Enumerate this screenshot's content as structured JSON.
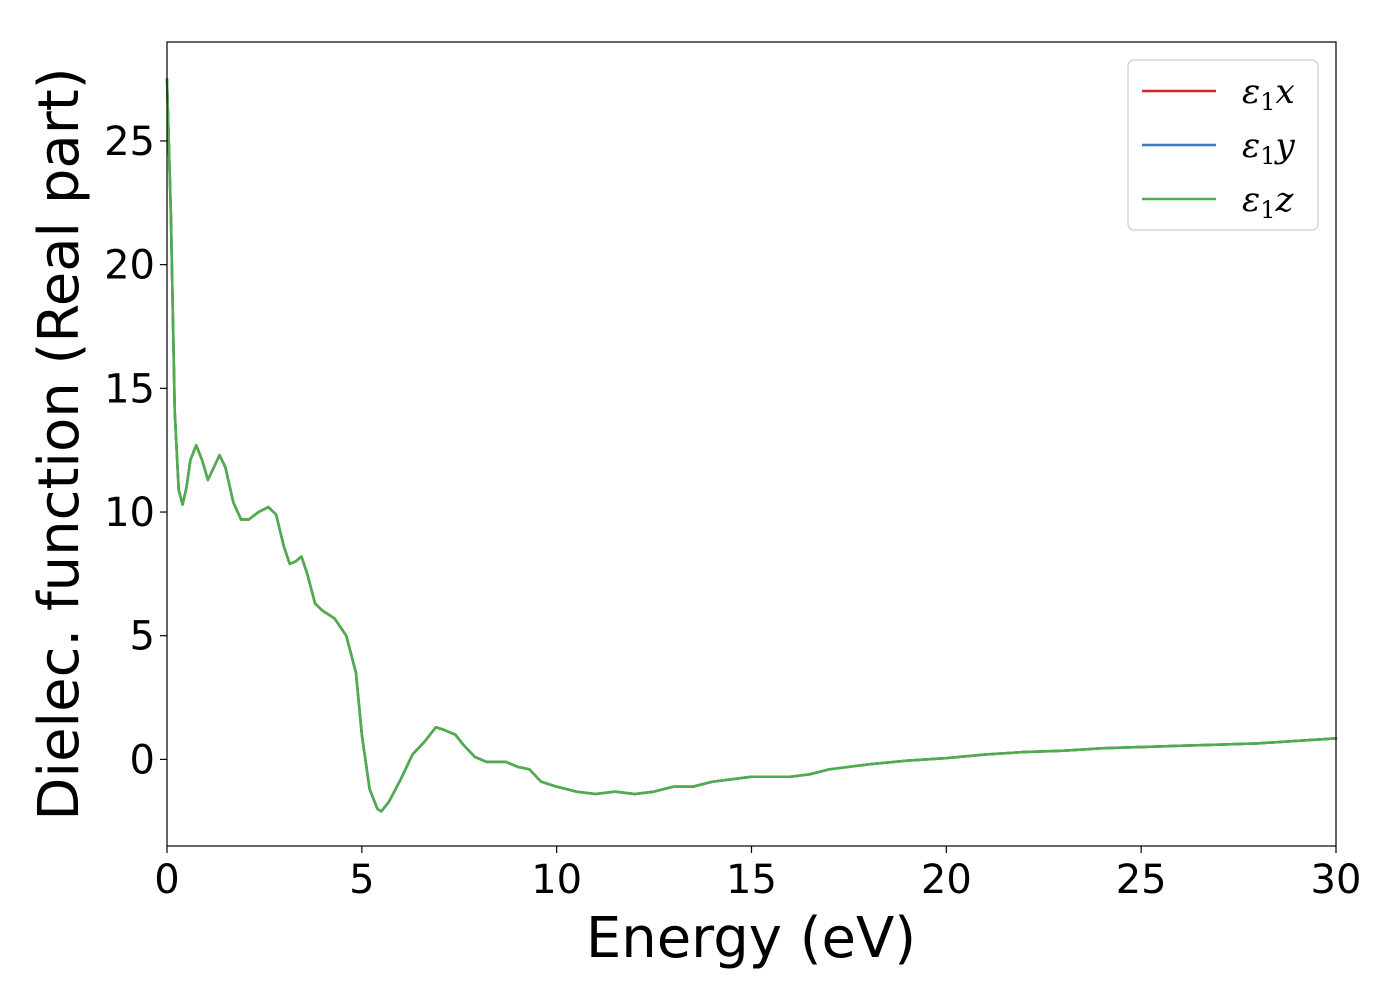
{
  "chart_data": {
    "type": "line",
    "xlabel": "Energy (eV)",
    "ylabel": "Dielec. function (Real part)",
    "xlim": [
      0,
      30
    ],
    "ylim": [
      -3.5,
      29
    ],
    "xticks": [
      0,
      5,
      10,
      15,
      20,
      25,
      30
    ],
    "yticks": [
      0,
      5,
      10,
      15,
      20,
      25
    ],
    "grid": false,
    "legend_position": "top-right",
    "x": [
      0.0,
      0.1,
      0.2,
      0.3,
      0.4,
      0.5,
      0.6,
      0.75,
      0.9,
      1.05,
      1.2,
      1.35,
      1.5,
      1.7,
      1.9,
      2.1,
      2.35,
      2.6,
      2.8,
      3.0,
      3.15,
      3.3,
      3.45,
      3.6,
      3.8,
      4.0,
      4.3,
      4.6,
      4.85,
      5.0,
      5.2,
      5.4,
      5.5,
      5.7,
      6.0,
      6.3,
      6.6,
      6.9,
      7.1,
      7.4,
      7.6,
      7.9,
      8.2,
      8.5,
      8.7,
      9.0,
      9.3,
      9.6,
      10.0,
      10.5,
      11.0,
      11.5,
      12.0,
      12.5,
      13.0,
      13.5,
      14.0,
      14.5,
      15.0,
      15.5,
      16.0,
      16.5,
      17.0,
      18.0,
      19.0,
      20.0,
      21.0,
      22.0,
      23.0,
      24.0,
      25.0,
      26.0,
      27.0,
      28.0,
      29.0,
      30.0
    ],
    "series": [
      {
        "name": "ε1x",
        "color": "#d62728",
        "values": [
          27.5,
          22.0,
          14.0,
          10.9,
          10.3,
          11.0,
          12.1,
          12.7,
          12.1,
          11.3,
          11.8,
          12.3,
          11.8,
          10.4,
          9.7,
          9.7,
          10.0,
          10.2,
          9.9,
          8.6,
          7.9,
          8.0,
          8.2,
          7.5,
          6.3,
          6.0,
          5.7,
          5.0,
          3.5,
          1.0,
          -1.2,
          -2.0,
          -2.1,
          -1.7,
          -0.8,
          0.2,
          0.7,
          1.3,
          1.2,
          1.0,
          0.6,
          0.1,
          -0.1,
          -0.1,
          -0.1,
          -0.3,
          -0.4,
          -0.9,
          -1.1,
          -1.3,
          -1.4,
          -1.3,
          -1.4,
          -1.3,
          -1.1,
          -1.1,
          -0.9,
          -0.8,
          -0.7,
          -0.7,
          -0.7,
          -0.6,
          -0.4,
          -0.2,
          -0.05,
          0.05,
          0.2,
          0.3,
          0.35,
          0.45,
          0.5,
          0.55,
          0.6,
          0.65,
          0.75,
          0.85
        ]
      },
      {
        "name": "ε1y",
        "color": "#377eb8",
        "values": [
          27.5,
          22.0,
          14.0,
          10.9,
          10.3,
          11.0,
          12.1,
          12.7,
          12.1,
          11.3,
          11.8,
          12.3,
          11.8,
          10.4,
          9.7,
          9.7,
          10.0,
          10.2,
          9.9,
          8.6,
          7.9,
          8.0,
          8.2,
          7.5,
          6.3,
          6.0,
          5.7,
          5.0,
          3.5,
          1.0,
          -1.2,
          -2.0,
          -2.1,
          -1.7,
          -0.8,
          0.2,
          0.7,
          1.3,
          1.2,
          1.0,
          0.6,
          0.1,
          -0.1,
          -0.1,
          -0.1,
          -0.3,
          -0.4,
          -0.9,
          -1.1,
          -1.3,
          -1.4,
          -1.3,
          -1.4,
          -1.3,
          -1.1,
          -1.1,
          -0.9,
          -0.8,
          -0.7,
          -0.7,
          -0.7,
          -0.6,
          -0.4,
          -0.2,
          -0.05,
          0.05,
          0.2,
          0.3,
          0.35,
          0.45,
          0.5,
          0.55,
          0.6,
          0.65,
          0.75,
          0.85
        ]
      },
      {
        "name": "ε1z",
        "color": "#4daf4a",
        "values": [
          27.5,
          22.0,
          14.0,
          10.9,
          10.3,
          11.0,
          12.1,
          12.7,
          12.1,
          11.3,
          11.8,
          12.3,
          11.8,
          10.4,
          9.7,
          9.7,
          10.0,
          10.2,
          9.9,
          8.6,
          7.9,
          8.0,
          8.2,
          7.5,
          6.3,
          6.0,
          5.7,
          5.0,
          3.5,
          1.0,
          -1.2,
          -2.0,
          -2.1,
          -1.7,
          -0.8,
          0.2,
          0.7,
          1.3,
          1.2,
          1.0,
          0.6,
          0.1,
          -0.1,
          -0.1,
          -0.1,
          -0.3,
          -0.4,
          -0.9,
          -1.1,
          -1.3,
          -1.4,
          -1.3,
          -1.4,
          -1.3,
          -1.1,
          -1.1,
          -0.9,
          -0.8,
          -0.7,
          -0.7,
          -0.7,
          -0.6,
          -0.4,
          -0.2,
          -0.05,
          0.05,
          0.2,
          0.3,
          0.35,
          0.45,
          0.5,
          0.55,
          0.6,
          0.65,
          0.75,
          0.85
        ]
      }
    ]
  }
}
